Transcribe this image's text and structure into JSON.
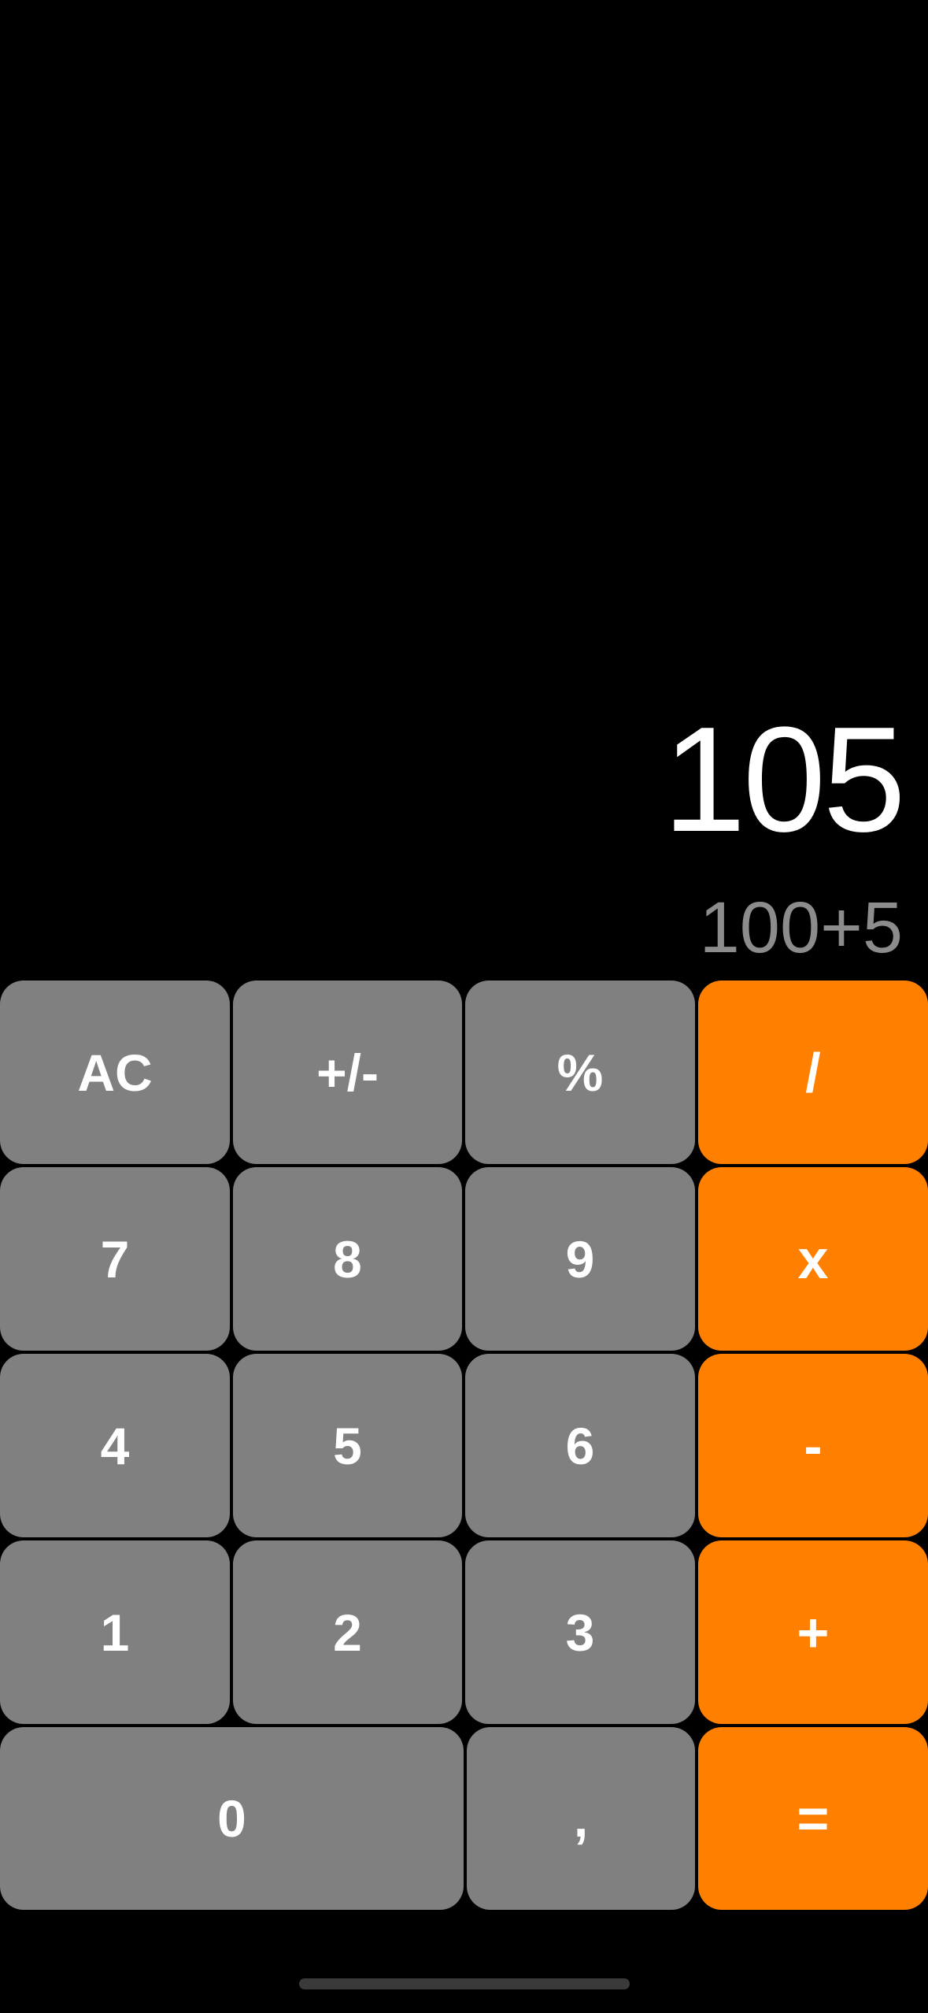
{
  "display": {
    "result": "105",
    "expression": "100+5"
  },
  "keys": {
    "clear": "AC",
    "sign": "+/-",
    "percent": "%",
    "divide": "/",
    "seven": "7",
    "eight": "8",
    "nine": "9",
    "multiply": "x",
    "four": "4",
    "five": "5",
    "six": "6",
    "subtract": "-",
    "one": "1",
    "two": "2",
    "three": "3",
    "add": "+",
    "zero": "0",
    "decimal": ",",
    "equals": "="
  },
  "colors": {
    "background": "#000000",
    "digit_key": "#808080",
    "operator_key": "#ff8000",
    "key_text": "#ffffff",
    "expression_text": "#8c8c8c"
  }
}
